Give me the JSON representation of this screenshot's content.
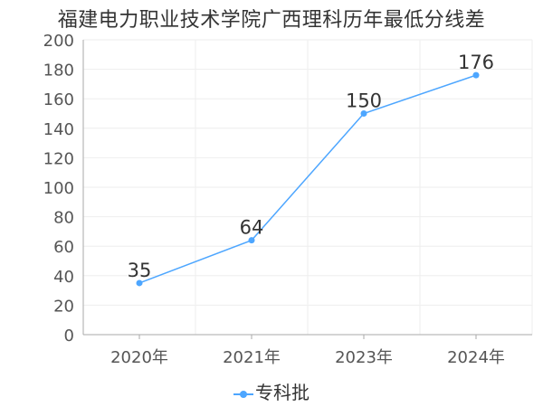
{
  "chart_data": {
    "type": "line",
    "title": "福建电力职业技术学院广西理科历年最低分线差",
    "categories": [
      "2020年",
      "2021年",
      "2023年",
      "2024年"
    ],
    "series": [
      {
        "name": "专科批",
        "values": [
          35,
          64,
          150,
          176
        ],
        "color": "#4da6ff"
      }
    ],
    "ylim": [
      0,
      200
    ],
    "yticks": [
      0,
      20,
      40,
      60,
      80,
      100,
      120,
      140,
      160,
      180,
      200
    ],
    "grid": true,
    "legend_position": "bottom"
  }
}
